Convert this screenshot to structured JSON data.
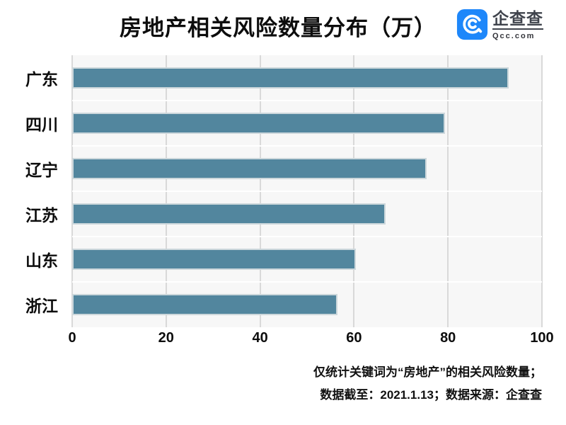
{
  "header": {
    "title": "房地产相关风险数量分布（万）",
    "logo": {
      "brand": "企查查",
      "domain": "Qcc.com",
      "icon": "qcc-spiral-icon",
      "icon_color": "#1e87fa",
      "text_color": "#3f434c"
    }
  },
  "chart_data": {
    "type": "bar",
    "orientation": "horizontal",
    "title": "房地产相关风险数量分布（万）",
    "categories": [
      "广东",
      "四川",
      "辽宁",
      "江苏",
      "山东",
      "浙江"
    ],
    "values": [
      92.3,
      78.8,
      74.8,
      66.1,
      59.8,
      55.9
    ],
    "xlabel": "",
    "ylabel": "",
    "xlim": [
      0,
      100
    ],
    "xticks": [
      0,
      20,
      40,
      60,
      80,
      100
    ],
    "grid": "vertical",
    "legend": "none",
    "bar_color": "#52869e",
    "bar_border_color": "#ccd7db",
    "plot_bg": "#f7f7f7",
    "gridline_color": "#d9d9d9"
  },
  "footer": {
    "line1": "仅统计关键词为“房地产”的相关风险数量；",
    "line2": "数据截至：2021.1.13；数据来源：企查查"
  }
}
